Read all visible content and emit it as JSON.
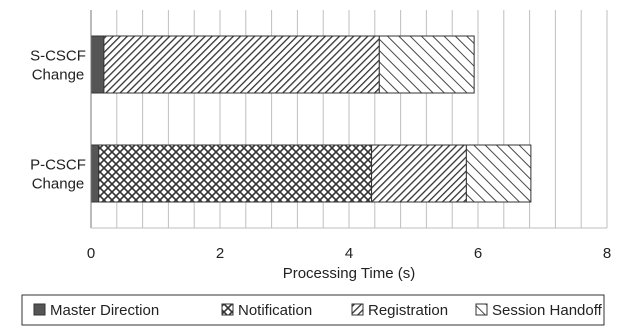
{
  "chart_data": {
    "type": "bar",
    "orientation": "horizontal",
    "stacked": true,
    "categories": [
      "S-CSCF Change",
      "P-CSCF Change"
    ],
    "category_lines": [
      [
        "S-CSCF",
        "Change"
      ],
      [
        "P-CSCF",
        "Change"
      ]
    ],
    "series": [
      {
        "name": "Master Direction",
        "values": [
          0.2,
          0.12
        ],
        "pattern": "solid"
      },
      {
        "name": "Notification",
        "values": [
          0.0,
          4.23
        ],
        "pattern": "crosshatch"
      },
      {
        "name": "Registration",
        "values": [
          4.27,
          1.47
        ],
        "pattern": "dense-diagonal"
      },
      {
        "name": "Session Handoff",
        "values": [
          1.47,
          1.0
        ],
        "pattern": "sparse-diagonal"
      }
    ],
    "xlabel": "Processing Time (s)",
    "ylabel": "",
    "xlim": [
      0,
      8
    ],
    "xticks": [
      0,
      2,
      4,
      6,
      8
    ],
    "grid": "vertical",
    "legend_position": "bottom",
    "colors": {
      "bar_fill": "#ffffff",
      "stroke": "#333333",
      "master": "#555555",
      "grid": "#bfbfbf"
    }
  }
}
